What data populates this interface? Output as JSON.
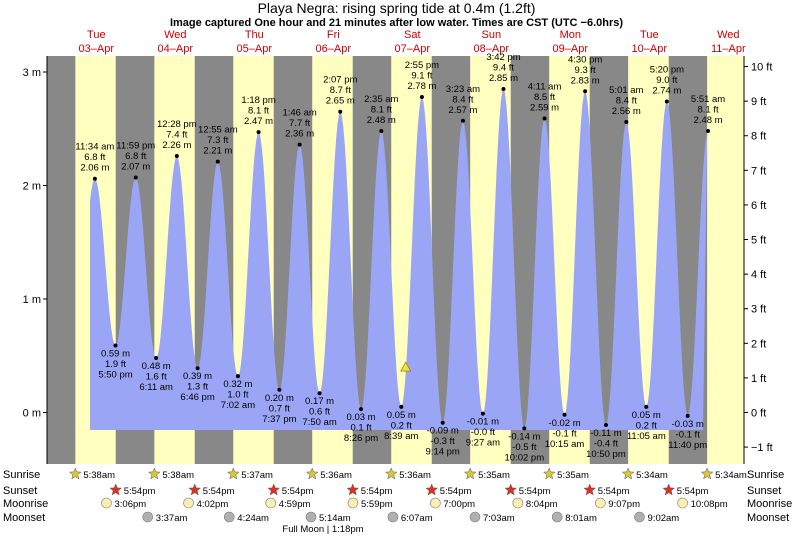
{
  "title": "Playa Negra: rising  spring tide at 0.4m (1.2ft)",
  "subtitle": "Image captured One hour and 21 minutes after low water. Times are CST (UTC −6.0hrs)",
  "chart_data": {
    "type": "area",
    "title": "Playa Negra: rising  spring tide at 0.4m (1.2ft)",
    "y_left": {
      "unit": "m",
      "ylim": [
        -0.43,
        3.07
      ],
      "ticks": [
        0,
        1,
        2,
        3
      ],
      "labels": [
        "0 m",
        "1 m",
        "2 m",
        "3 m"
      ]
    },
    "y_right": {
      "unit": "ft",
      "ticks": [
        -1,
        0,
        1,
        2,
        3,
        4,
        5,
        6,
        7,
        8,
        9,
        10
      ],
      "labels": [
        "−1 ft",
        "0 ft",
        "1 ft",
        "2 ft",
        "3 ft",
        "4 ft",
        "5 ft",
        "6 ft",
        "7 ft",
        "8 ft",
        "9 ft",
        "10 ft"
      ]
    },
    "days": [
      {
        "day": "Tue",
        "date": "03–Apr"
      },
      {
        "day": "Wed",
        "date": "04–Apr"
      },
      {
        "day": "Thu",
        "date": "05–Apr"
      },
      {
        "day": "Fri",
        "date": "06–Apr"
      },
      {
        "day": "Sat",
        "date": "07–Apr"
      },
      {
        "day": "Sun",
        "date": "08–Apr"
      },
      {
        "day": "Mon",
        "date": "09–Apr"
      },
      {
        "day": "Tue",
        "date": "10–Apr"
      },
      {
        "day": "Wed",
        "date": "11–Apr"
      }
    ],
    "tides": [
      {
        "type": "high",
        "date": "03–Apr",
        "time": "11:34 am",
        "m": 2.06,
        "ft": "6.8 ft",
        "m_label": "2.06 m"
      },
      {
        "type": "low",
        "date": "03–Apr",
        "time": "5:50 pm",
        "m": 0.59,
        "ft": "1.9 ft",
        "m_label": "0.59 m"
      },
      {
        "type": "high",
        "date": "03–Apr",
        "time": "11:59 pm",
        "m": 2.07,
        "ft": "6.8 ft",
        "m_label": "2.07 m"
      },
      {
        "type": "low",
        "date": "04–Apr",
        "time": "6:11 am",
        "m": 0.48,
        "ft": "1.6 ft",
        "m_label": "0.48 m"
      },
      {
        "type": "high",
        "date": "04–Apr",
        "time": "12:28 pm",
        "m": 2.26,
        "ft": "7.4 ft",
        "m_label": "2.26 m"
      },
      {
        "type": "low",
        "date": "04–Apr",
        "time": "6:46 pm",
        "m": 0.39,
        "ft": "1.3 ft",
        "m_label": "0.39 m"
      },
      {
        "type": "high",
        "date": "05–Apr",
        "time": "12:55 am",
        "m": 2.21,
        "ft": "7.3 ft",
        "m_label": "2.21 m"
      },
      {
        "type": "low",
        "date": "05–Apr",
        "time": "7:02 am",
        "m": 0.32,
        "ft": "1.0 ft",
        "m_label": "0.32 m"
      },
      {
        "type": "high",
        "date": "05–Apr",
        "time": "1:18 pm",
        "m": 2.47,
        "ft": "8.1 ft",
        "m_label": "2.47 m"
      },
      {
        "type": "low",
        "date": "05–Apr",
        "time": "7:37 pm",
        "m": 0.2,
        "ft": "0.7 ft",
        "m_label": "0.20 m"
      },
      {
        "type": "high",
        "date": "06–Apr",
        "time": "1:46 am",
        "m": 2.36,
        "ft": "7.7 ft",
        "m_label": "2.36 m"
      },
      {
        "type": "low",
        "date": "06–Apr",
        "time": "7:50 am",
        "m": 0.17,
        "ft": "0.6 ft",
        "m_label": "0.17 m"
      },
      {
        "type": "high",
        "date": "06–Apr",
        "time": "2:07 pm",
        "m": 2.65,
        "ft": "8.7 ft",
        "m_label": "2.65 m"
      },
      {
        "type": "low",
        "date": "06–Apr",
        "time": "8:26 pm",
        "m": 0.03,
        "ft": "0.1 ft",
        "m_label": "0.03 m"
      },
      {
        "type": "high",
        "date": "07–Apr",
        "time": "2:35 am",
        "m": 2.48,
        "ft": "8.1 ft",
        "m_label": "2.48 m"
      },
      {
        "type": "low",
        "date": "07–Apr",
        "time": "8:39 am",
        "m": 0.05,
        "ft": "0.2 ft",
        "m_label": "0.05 m"
      },
      {
        "type": "high",
        "date": "07–Apr",
        "time": "2:55 pm",
        "m": 2.78,
        "ft": "9.1 ft",
        "m_label": "2.78 m"
      },
      {
        "type": "low",
        "date": "07–Apr",
        "time": "9:14 pm",
        "m": -0.09,
        "ft": "-0.3 ft",
        "m_label": "-0.09 m"
      },
      {
        "type": "high",
        "date": "08–Apr",
        "time": "3:23 am",
        "m": 2.57,
        "ft": "8.4 ft",
        "m_label": "2.57 m"
      },
      {
        "type": "low",
        "date": "08–Apr",
        "time": "9:27 am",
        "m": -0.01,
        "ft": "-0.0 ft",
        "m_label": "-0.01 m"
      },
      {
        "type": "high",
        "date": "08–Apr",
        "time": "3:42 pm",
        "m": 2.85,
        "ft": "9.4 ft",
        "m_label": "2.85 m"
      },
      {
        "type": "low",
        "date": "08–Apr",
        "time": "10:02 pm",
        "m": -0.14,
        "ft": "-0.5 ft",
        "m_label": "-0.14 m"
      },
      {
        "type": "high",
        "date": "09–Apr",
        "time": "4:11 am",
        "m": 2.59,
        "ft": "8.5 ft",
        "m_label": "2.59 m"
      },
      {
        "type": "low",
        "date": "09–Apr",
        "time": "10:15 am",
        "m": -0.02,
        "ft": "-0.1 ft",
        "m_label": "-0.02 m"
      },
      {
        "type": "high",
        "date": "09–Apr",
        "time": "4:30 pm",
        "m": 2.83,
        "ft": "9.3 ft",
        "m_label": "2.83 m"
      },
      {
        "type": "low",
        "date": "09–Apr",
        "time": "10:50 pm",
        "m": -0.11,
        "ft": "-0.4 ft",
        "m_label": "-0.11 m"
      },
      {
        "type": "high",
        "date": "10–Apr",
        "time": "5:01 am",
        "m": 2.56,
        "ft": "8.4 ft",
        "m_label": "2.56 m"
      },
      {
        "type": "low",
        "date": "10–Apr",
        "time": "11:05 am",
        "m": 0.05,
        "ft": "0.2 ft",
        "m_label": "0.05 m"
      },
      {
        "type": "high",
        "date": "10–Apr",
        "time": "5:20 pm",
        "m": 2.74,
        "ft": "9.0 ft",
        "m_label": "2.74 m"
      },
      {
        "type": "low",
        "date": "10–Apr",
        "time": "11:40 pm",
        "m": -0.03,
        "ft": "-0.1 ft",
        "m_label": "-0.03 m"
      },
      {
        "type": "high",
        "date": "11–Apr",
        "time": "5:51 am",
        "m": 2.48,
        "ft": "8.1 ft",
        "m_label": "2.48 m"
      }
    ],
    "current": {
      "date": "07–Apr",
      "time": "10:00 am",
      "m": 0.4,
      "label": "rising spring tide at 0.4m (1.2ft)"
    },
    "sunrise": [
      {
        "date": "03–Apr",
        "time": "5:38am"
      },
      {
        "date": "04–Apr",
        "time": "5:38am"
      },
      {
        "date": "05–Apr",
        "time": "5:37am"
      },
      {
        "date": "06–Apr",
        "time": "5:36am"
      },
      {
        "date": "07–Apr",
        "time": "5:36am"
      },
      {
        "date": "08–Apr",
        "time": "5:35am"
      },
      {
        "date": "09–Apr",
        "time": "5:35am"
      },
      {
        "date": "10–Apr",
        "time": "5:34am"
      },
      {
        "date": "11–Apr",
        "time": "5:34am"
      }
    ],
    "sunset": [
      {
        "date": "03–Apr",
        "time": "5:54pm"
      },
      {
        "date": "04–Apr",
        "time": "5:54pm"
      },
      {
        "date": "05–Apr",
        "time": "5:54pm"
      },
      {
        "date": "06–Apr",
        "time": "5:54pm"
      },
      {
        "date": "07–Apr",
        "time": "5:54pm"
      },
      {
        "date": "08–Apr",
        "time": "5:54pm"
      },
      {
        "date": "09–Apr",
        "time": "5:54pm"
      },
      {
        "date": "10–Apr",
        "time": "5:54pm"
      }
    ],
    "moonrise": [
      {
        "date": "03–Apr",
        "time": "3:06pm"
      },
      {
        "date": "04–Apr",
        "time": "4:02pm"
      },
      {
        "date": "05–Apr",
        "time": "4:59pm"
      },
      {
        "date": "06–Apr",
        "time": "5:59pm"
      },
      {
        "date": "07–Apr",
        "time": "7:00pm"
      },
      {
        "date": "08–Apr",
        "time": "8:04pm"
      },
      {
        "date": "09–Apr",
        "time": "9:07pm"
      },
      {
        "date": "10–Apr",
        "time": "10:08pm"
      }
    ],
    "moonset": [
      {
        "date": "04–Apr",
        "time": "3:37am"
      },
      {
        "date": "05–Apr",
        "time": "4:24am"
      },
      {
        "date": "06–Apr",
        "time": "5:14am"
      },
      {
        "date": "07–Apr",
        "time": "6:07am"
      },
      {
        "date": "08–Apr",
        "time": "7:03am"
      },
      {
        "date": "09–Apr",
        "time": "8:01am"
      },
      {
        "date": "10–Apr",
        "time": "9:02am"
      }
    ],
    "full_moon": "Full Moon | 1:18pm",
    "row_labels": {
      "sunrise": "Sunrise",
      "sunset": "Sunset",
      "moonrise": "Moonrise",
      "moonset": "Moonset"
    },
    "colors": {
      "day": "#ffffc0",
      "night": "#888888",
      "water": "#9aa6f5",
      "chart_bg": "#ffffff",
      "day_text": "#cc0000",
      "sun_star": "#d8c840",
      "sunset_star": "#e03020",
      "moon_rise": "#f8f0b0",
      "moon_set": "#b0b0b0"
    }
  }
}
